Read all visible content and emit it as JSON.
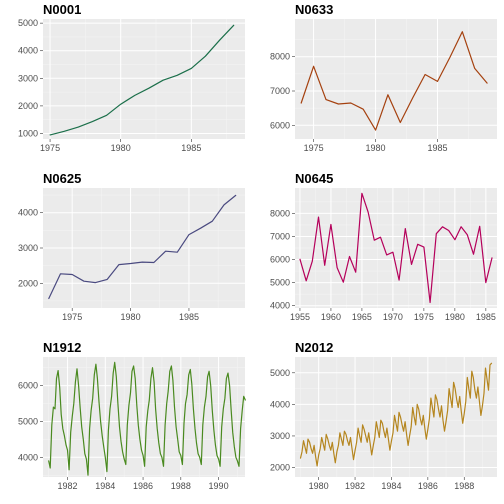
{
  "chart_data": [
    {
      "type": "line",
      "title": "N0001",
      "color": "#1b6f4a",
      "xlim": [
        1974.5,
        1988.8
      ],
      "ylim": [
        800,
        5150
      ],
      "xticks": [
        1975,
        1980,
        1985
      ],
      "yticks": [
        1000,
        2000,
        3000,
        4000,
        5000
      ],
      "x": [
        1975,
        1976,
        1977,
        1978,
        1979,
        1980,
        1981,
        1982,
        1983,
        1984,
        1985,
        1986,
        1987,
        1988
      ],
      "y": [
        950,
        1080,
        1230,
        1430,
        1660,
        2060,
        2380,
        2640,
        2930,
        3110,
        3360,
        3800,
        4380,
        4920
      ]
    },
    {
      "type": "line",
      "title": "N0633",
      "color": "#a5410f",
      "xlim": [
        1973.5,
        1989.8
      ],
      "ylim": [
        5600,
        9100
      ],
      "xticks": [
        1975,
        1980,
        1985
      ],
      "yticks": [
        6000,
        7000,
        8000
      ],
      "x": [
        1974,
        1975,
        1976,
        1977,
        1978,
        1979,
        1980,
        1981,
        1982,
        1983,
        1984,
        1985,
        1986,
        1987,
        1988,
        1989
      ],
      "y": [
        6650,
        7720,
        6750,
        6620,
        6650,
        6470,
        5860,
        6890,
        6080,
        6800,
        7480,
        7280,
        7980,
        8730,
        7660,
        7230
      ]
    },
    {
      "type": "line",
      "title": "N0625",
      "color": "#4a4a80",
      "xlim": [
        1972.5,
        1989.8
      ],
      "ylim": [
        1300,
        4700
      ],
      "xticks": [
        1975,
        1980,
        1985
      ],
      "yticks": [
        2000,
        3000,
        4000
      ],
      "x": [
        1973,
        1974,
        1975,
        1976,
        1977,
        1978,
        1979,
        1980,
        1981,
        1982,
        1983,
        1984,
        1985,
        1986,
        1987,
        1988,
        1989
      ],
      "y": [
        1570,
        2270,
        2250,
        2060,
        2020,
        2110,
        2530,
        2560,
        2600,
        2590,
        2910,
        2880,
        3380,
        3560,
        3760,
        4220,
        4490
      ]
    },
    {
      "type": "line",
      "title": "N0645",
      "color": "#b5005b",
      "xlim": [
        1954.2,
        1986.8
      ],
      "ylim": [
        3900,
        9100
      ],
      "xticks": [
        1955,
        1960,
        1965,
        1970,
        1975,
        1980,
        1985
      ],
      "yticks": [
        4000,
        5000,
        6000,
        7000,
        8000
      ],
      "x": [
        1955,
        1956,
        1957,
        1958,
        1959,
        1960,
        1961,
        1962,
        1963,
        1964,
        1965,
        1966,
        1967,
        1968,
        1969,
        1970,
        1971,
        1972,
        1973,
        1974,
        1975,
        1976,
        1977,
        1978,
        1979,
        1980,
        1981,
        1982,
        1983,
        1984,
        1985,
        1986
      ],
      "y": [
        6010,
        5080,
        5930,
        7840,
        5750,
        7520,
        5650,
        5020,
        6130,
        5450,
        8870,
        8060,
        6840,
        6970,
        6200,
        6320,
        5110,
        7340,
        5790,
        6660,
        6540,
        4140,
        7120,
        7420,
        7260,
        6860,
        7420,
        7070,
        6230,
        7440,
        5000,
        6070
      ]
    },
    {
      "type": "line",
      "title": "N1912",
      "color": "#4a8a20",
      "xlim": [
        1980.7,
        1991.4
      ],
      "ylim": [
        3450,
        6800
      ],
      "xticks": [
        1982,
        1984,
        1986,
        1988,
        1990
      ],
      "yticks": [
        4000,
        5000,
        6000
      ],
      "start": 1981.0,
      "step": 0.0833333,
      "y": [
        3900,
        3700,
        4900,
        5400,
        5350,
        6200,
        6420,
        5950,
        5200,
        4800,
        4600,
        4350,
        4200,
        3650,
        4700,
        5150,
        5500,
        6100,
        6470,
        6000,
        5400,
        4850,
        4500,
        4100,
        3950,
        3500,
        4800,
        5300,
        5650,
        6300,
        6600,
        6200,
        5550,
        5000,
        4600,
        4300,
        4000,
        3600,
        4750,
        5350,
        5700,
        6350,
        6650,
        6250,
        5500,
        4850,
        4450,
        4150,
        3950,
        3800,
        4900,
        5450,
        5800,
        6400,
        6550,
        6200,
        5450,
        4900,
        4500,
        4200,
        4050,
        3750,
        4850,
        5300,
        5600,
        6200,
        6500,
        6100,
        5350,
        4800,
        4400,
        4100,
        4000,
        3750,
        4900,
        5500,
        5850,
        6400,
        6550,
        6150,
        5400,
        4850,
        4500,
        4150,
        4050,
        3800,
        4950,
        5500,
        5750,
        6300,
        6450,
        6050,
        5350,
        4800,
        4400,
        4100,
        4000,
        3800,
        4900,
        5400,
        5700,
        6250,
        6400,
        6000,
        5300,
        4750,
        4350,
        4050,
        3950,
        3750,
        4850,
        5350,
        5650,
        6200,
        6350,
        6000,
        5300,
        4700,
        4300,
        4000,
        3900,
        3750,
        4800,
        5300,
        5700,
        5600
      ]
    },
    {
      "type": "line",
      "title": "N2012",
      "color": "#b5861f",
      "xlim": [
        1978.7,
        1989.8
      ],
      "ylim": [
        1700,
        5500
      ],
      "xticks": [
        1980,
        1982,
        1984,
        1986,
        1988
      ],
      "yticks": [
        2000,
        3000,
        4000,
        5000
      ],
      "start": 1979.0,
      "step": 0.0833333,
      "y": [
        2300,
        2500,
        2850,
        2650,
        2450,
        2900,
        2800,
        2600,
        2450,
        2700,
        2350,
        2050,
        2400,
        2600,
        2950,
        2750,
        2550,
        3050,
        2900,
        2700,
        2550,
        2800,
        2450,
        2150,
        2500,
        2700,
        3100,
        2900,
        2700,
        3150,
        3050,
        2850,
        2700,
        2950,
        2600,
        2250,
        2550,
        2800,
        3250,
        3000,
        2800,
        3350,
        3200,
        3000,
        2800,
        3100,
        2750,
        2400,
        2700,
        2950,
        3450,
        3200,
        2950,
        3500,
        3400,
        3150,
        2950,
        3250,
        2900,
        2550,
        2850,
        3100,
        3650,
        3400,
        3150,
        3750,
        3600,
        3350,
        3150,
        3450,
        3050,
        2700,
        3000,
        3300,
        3900,
        3600,
        3350,
        4000,
        3850,
        3550,
        3350,
        3650,
        3250,
        2900,
        3200,
        3550,
        4200,
        3900,
        3600,
        4300,
        4150,
        3850,
        3600,
        3950,
        3500,
        3150,
        3450,
        3800,
        4500,
        4200,
        3900,
        4700,
        4500,
        4150,
        3900,
        4250,
        3800,
        3400,
        3700,
        4100,
        4850,
        4500,
        4200,
        5050,
        4850,
        4450,
        4200,
        4550,
        4100,
        3650,
        3950,
        4350,
        5150,
        4800,
        4450,
        5250,
        5300
      ]
    }
  ]
}
